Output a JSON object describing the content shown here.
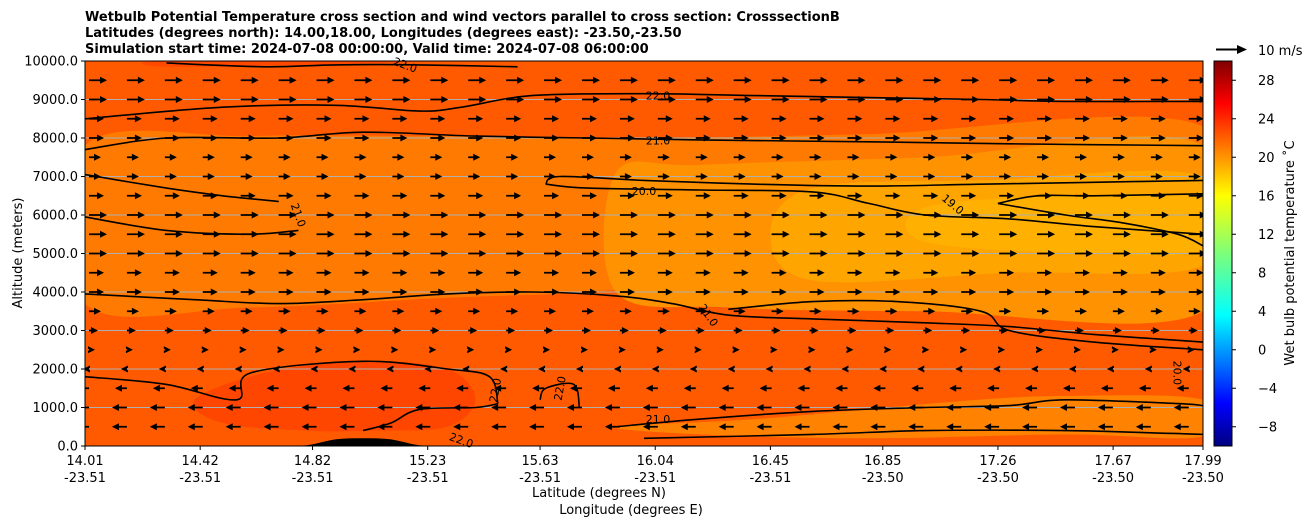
{
  "chart_data": {
    "type": "heatmap",
    "title_lines": [
      "Wetbulb Potential Temperature cross section and wind vectors parallel to cross section: CrosssectionB",
      "Latitudes (degrees north): 14.00,18.00, Longitudes (degrees east): -23.50,-23.50",
      "Simulation start time: 2024-07-08 00:00:00, Valid time: 2024-07-08 06:00:00"
    ],
    "xlabel": "Latitude (degrees N)",
    "xlabel2": "Longitude (degrees E)",
    "ylabel": "Altitude (meters)",
    "ylim": [
      0,
      10000
    ],
    "xlim": [
      14.01,
      17.99
    ],
    "y_ticks": [
      {
        "value": 0,
        "label": "0.0"
      },
      {
        "value": 1000,
        "label": "1000.0"
      },
      {
        "value": 2000,
        "label": "2000.0"
      },
      {
        "value": 3000,
        "label": "3000.0"
      },
      {
        "value": 4000,
        "label": "4000.0"
      },
      {
        "value": 5000,
        "label": "5000.0"
      },
      {
        "value": 6000,
        "label": "6000.0"
      },
      {
        "value": 7000,
        "label": "7000.0"
      },
      {
        "value": 8000,
        "label": "8000.0"
      },
      {
        "value": 9000,
        "label": "9000.0"
      },
      {
        "value": 10000,
        "label": "10000.0"
      }
    ],
    "x_ticks": [
      {
        "lat": 14.01,
        "lat_label": "14.01",
        "lon_label": "-23.51"
      },
      {
        "lat": 14.42,
        "lat_label": "14.42",
        "lon_label": "-23.51"
      },
      {
        "lat": 14.82,
        "lat_label": "14.82",
        "lon_label": "-23.51"
      },
      {
        "lat": 15.23,
        "lat_label": "15.23",
        "lon_label": "-23.51"
      },
      {
        "lat": 15.63,
        "lat_label": "15.63",
        "lon_label": "-23.51"
      },
      {
        "lat": 16.04,
        "lat_label": "16.04",
        "lon_label": "-23.51"
      },
      {
        "lat": 16.45,
        "lat_label": "16.45",
        "lon_label": "-23.51"
      },
      {
        "lat": 16.85,
        "lat_label": "16.85",
        "lon_label": "-23.50"
      },
      {
        "lat": 17.26,
        "lat_label": "17.26",
        "lon_label": "-23.50"
      },
      {
        "lat": 17.67,
        "lat_label": "17.67",
        "lon_label": "-23.50"
      },
      {
        "lat": 17.99,
        "lat_label": "17.99",
        "lon_label": "-23.50"
      }
    ],
    "colorbar": {
      "label": "Wet bulb potential temperature ˚C",
      "min": -10,
      "max": 30,
      "ticks": [
        -8,
        -4,
        0,
        4,
        8,
        12,
        16,
        20,
        24,
        28
      ],
      "tick_labels": [
        "−8",
        "−4",
        "0",
        "4",
        "8",
        "12",
        "16",
        "20",
        "24",
        "28"
      ]
    },
    "quiver_key": {
      "label": "10 m/s",
      "speed": 10
    },
    "filled_regions": [
      {
        "name": "background-23",
        "value": 23,
        "color": "#ff5a00",
        "points": [
          [
            14.01,
            0
          ],
          [
            17.99,
            0
          ],
          [
            17.99,
            10000
          ],
          [
            14.01,
            10000
          ]
        ]
      },
      {
        "name": "layer-22",
        "value": 22,
        "color": "#ff7a00",
        "points": [
          [
            14.01,
            3700
          ],
          [
            14.6,
            3600
          ],
          [
            15.3,
            3850
          ],
          [
            15.7,
            3950
          ],
          [
            16.2,
            4100
          ],
          [
            17.99,
            4150
          ],
          [
            17.99,
            8300
          ],
          [
            16.8,
            8100
          ],
          [
            16.0,
            8000
          ],
          [
            15.2,
            8050
          ],
          [
            14.6,
            8050
          ],
          [
            14.01,
            7800
          ]
        ]
      },
      {
        "name": "layer-21",
        "value": 21,
        "color": "#ff9200",
        "points": [
          [
            15.9,
            4000
          ],
          [
            16.3,
            3600
          ],
          [
            17.0,
            3500
          ],
          [
            17.99,
            3500
          ],
          [
            17.99,
            7800
          ],
          [
            17.0,
            7500
          ],
          [
            16.2,
            7300
          ],
          [
            15.9,
            7100
          ]
        ]
      },
      {
        "name": "layer-20",
        "value": 20,
        "color": "#ffa500",
        "points": [
          [
            16.6,
            4300
          ],
          [
            17.3,
            4500
          ],
          [
            17.99,
            4700
          ],
          [
            17.99,
            7000
          ],
          [
            17.2,
            6900
          ],
          [
            16.6,
            6700
          ],
          [
            16.45,
            5500
          ]
        ]
      },
      {
        "name": "layer-19",
        "value": 19,
        "color": "#ffb000",
        "points": [
          [
            17.0,
            5300
          ],
          [
            17.6,
            5000
          ],
          [
            17.99,
            5100
          ],
          [
            17.99,
            6400
          ],
          [
            17.5,
            6500
          ],
          [
            17.0,
            6200
          ]
        ]
      },
      {
        "name": "low-21",
        "value": 21,
        "color": "#ff8200",
        "points": [
          [
            15.9,
            500
          ],
          [
            16.4,
            700
          ],
          [
            17.1,
            1150
          ],
          [
            17.5,
            1300
          ],
          [
            17.99,
            1200
          ],
          [
            17.99,
            250
          ],
          [
            17.5,
            300
          ],
          [
            16.8,
            200
          ],
          [
            16.2,
            300
          ]
        ]
      },
      {
        "name": "low-24",
        "value": 24,
        "color": "#ff4600",
        "points": [
          [
            14.4,
            1200
          ],
          [
            14.65,
            1900
          ],
          [
            15.0,
            2200
          ],
          [
            15.3,
            2000
          ],
          [
            15.4,
            1200
          ],
          [
            15.3,
            500
          ],
          [
            15.05,
            400
          ],
          [
            14.8,
            400
          ],
          [
            14.5,
            600
          ]
        ]
      },
      {
        "name": "upper-24",
        "value": 24,
        "color": "#ff4800",
        "points": [
          [
            14.3,
            9850
          ],
          [
            14.8,
            9900
          ],
          [
            15.2,
            10000
          ],
          [
            14.3,
            10000
          ]
        ]
      }
    ],
    "contours": [
      {
        "level": 22.0,
        "points": [
          [
            14.01,
            8500
          ],
          [
            14.5,
            8800
          ],
          [
            14.9,
            8850
          ],
          [
            15.2,
            8700
          ],
          [
            15.35,
            8800
          ],
          [
            15.6,
            9100
          ],
          [
            16.0,
            9150
          ],
          [
            16.4,
            9100
          ],
          [
            16.8,
            9050
          ],
          [
            17.2,
            9000
          ],
          [
            17.5,
            8950
          ],
          [
            17.99,
            8950
          ]
        ]
      },
      {
        "level": 22.0,
        "points": [
          [
            15.55,
            9850
          ],
          [
            15.2,
            9900
          ],
          [
            14.9,
            9900
          ],
          [
            14.65,
            9850
          ],
          [
            14.3,
            9950
          ]
        ]
      },
      {
        "level": 21.0,
        "points": [
          [
            14.01,
            7700
          ],
          [
            14.3,
            8000
          ],
          [
            14.7,
            8000
          ],
          [
            15.0,
            8150
          ],
          [
            15.4,
            8050
          ],
          [
            15.8,
            8000
          ],
          [
            16.2,
            7950
          ],
          [
            16.8,
            7900
          ],
          [
            17.3,
            7850
          ],
          [
            17.99,
            7800
          ]
        ]
      },
      {
        "level": 21.0,
        "points": [
          [
            14.01,
            7050
          ],
          [
            14.3,
            6700
          ],
          [
            14.5,
            6500
          ],
          [
            14.7,
            6350
          ]
        ]
      },
      {
        "level": 21.0,
        "points": [
          [
            14.01,
            5950
          ],
          [
            14.3,
            5600
          ],
          [
            14.6,
            5500
          ],
          [
            14.77,
            5600
          ]
        ]
      },
      {
        "level": 20.0,
        "points": [
          [
            15.65,
            6800
          ],
          [
            15.7,
            7000
          ],
          [
            16.0,
            6900
          ],
          [
            16.4,
            6800
          ],
          [
            16.8,
            6750
          ],
          [
            17.2,
            6800
          ],
          [
            17.6,
            6850
          ],
          [
            17.99,
            6900
          ]
        ]
      },
      {
        "level": 20.0,
        "points": [
          [
            15.65,
            6800
          ],
          [
            15.8,
            6700
          ],
          [
            16.2,
            6650
          ],
          [
            16.6,
            6600
          ],
          [
            16.8,
            6300
          ],
          [
            17.0,
            6000
          ],
          [
            17.3,
            5900
          ],
          [
            17.6,
            5700
          ],
          [
            17.99,
            5500
          ]
        ]
      },
      {
        "level": 19.0,
        "points": [
          [
            17.26,
            6300
          ],
          [
            17.4,
            6500
          ],
          [
            17.6,
            6500
          ],
          [
            17.99,
            6550
          ]
        ]
      },
      {
        "level": 19.0,
        "points": [
          [
            17.26,
            6300
          ],
          [
            17.5,
            6000
          ],
          [
            17.7,
            5800
          ],
          [
            17.9,
            5500
          ],
          [
            17.99,
            5200
          ]
        ]
      },
      {
        "level": 21.0,
        "points": [
          [
            14.01,
            3950
          ],
          [
            14.4,
            3800
          ],
          [
            14.7,
            3700
          ],
          [
            15.0,
            3800
          ],
          [
            15.3,
            3950
          ],
          [
            15.6,
            4000
          ],
          [
            15.9,
            3900
          ],
          [
            16.1,
            3700
          ],
          [
            16.3,
            3400
          ],
          [
            16.6,
            3300
          ],
          [
            17.0,
            3200
          ],
          [
            17.3,
            3100
          ],
          [
            17.6,
            2900
          ],
          [
            17.99,
            2700
          ]
        ]
      },
      {
        "level": 20.0,
        "points": [
          [
            16.3,
            3550
          ],
          [
            16.6,
            3750
          ],
          [
            16.9,
            3750
          ],
          [
            17.2,
            3500
          ],
          [
            17.3,
            3000
          ],
          [
            17.6,
            2700
          ],
          [
            17.99,
            2500
          ]
        ]
      },
      {
        "level": 22.0,
        "points": [
          [
            14.01,
            1800
          ],
          [
            14.3,
            1600
          ],
          [
            14.55,
            1200
          ],
          [
            14.6,
            1900
          ],
          [
            15.0,
            2200
          ],
          [
            15.3,
            2000
          ],
          [
            15.45,
            1800
          ],
          [
            15.48,
            1100
          ]
        ]
      },
      {
        "level": 22.0,
        "points": [
          [
            15.48,
            1100
          ],
          [
            15.4,
            1000
          ],
          [
            15.2,
            950
          ],
          [
            15.1,
            600
          ],
          [
            15.0,
            400
          ]
        ]
      },
      {
        "level": 22.0,
        "points": [
          [
            15.63,
            1200
          ],
          [
            15.65,
            1500
          ],
          [
            15.75,
            1600
          ],
          [
            15.77,
            1000
          ]
        ]
      },
      {
        "level": 21.0,
        "points": [
          [
            15.9,
            500
          ],
          [
            16.2,
            700
          ],
          [
            16.6,
            900
          ],
          [
            17.0,
            1000
          ],
          [
            17.3,
            1050
          ],
          [
            17.5,
            1200
          ],
          [
            17.9,
            1100
          ],
          [
            17.99,
            1050
          ]
        ]
      },
      {
        "level": 21.0,
        "points": [
          [
            16.0,
            200
          ],
          [
            16.6,
            300
          ],
          [
            17.0,
            400
          ],
          [
            17.5,
            400
          ],
          [
            17.99,
            300
          ]
        ]
      }
    ],
    "contour_labels": [
      {
        "text": "22.0",
        "lat": 16.05,
        "alt": 9100,
        "angle": 0
      },
      {
        "text": "21.0",
        "lat": 16.05,
        "alt": 7940,
        "angle": 0
      },
      {
        "text": "20.0",
        "lat": 16.0,
        "alt": 6620,
        "angle": 0
      },
      {
        "text": "19.0",
        "lat": 17.1,
        "alt": 6280,
        "angle": 40
      },
      {
        "text": "21.0",
        "lat": 14.77,
        "alt": 6000,
        "angle": 70
      },
      {
        "text": "21.0",
        "lat": 16.23,
        "alt": 3400,
        "angle": 55
      },
      {
        "text": "20.0",
        "lat": 17.9,
        "alt": 1900,
        "angle": 90
      },
      {
        "text": "22.0",
        "lat": 15.47,
        "alt": 1450,
        "angle": -80
      },
      {
        "text": "22.0",
        "lat": 15.7,
        "alt": 1500,
        "angle": -80
      },
      {
        "text": "21.0",
        "lat": 16.05,
        "alt": 700,
        "angle": 0
      },
      {
        "text": "22.0",
        "lat": 15.35,
        "alt": 150,
        "angle": 20
      },
      {
        "text": "22.0",
        "lat": 15.15,
        "alt": 9900,
        "angle": 20
      }
    ],
    "terrain": {
      "peak_lat": 15.0,
      "width_lat": 0.25,
      "peak_alt": 200
    },
    "wind_rows": [
      {
        "alt": 9500,
        "u": 6
      },
      {
        "alt": 9000,
        "u": 6
      },
      {
        "alt": 8500,
        "u": 5
      },
      {
        "alt": 8000,
        "u": 5
      },
      {
        "alt": 7500,
        "u": 4
      },
      {
        "alt": 7000,
        "u": 4
      },
      {
        "alt": 6500,
        "u": 5
      },
      {
        "alt": 6000,
        "u": 6
      },
      {
        "alt": 5500,
        "u": 6
      },
      {
        "alt": 5000,
        "u": 6
      },
      {
        "alt": 4500,
        "u": 5
      },
      {
        "alt": 4000,
        "u": 5
      },
      {
        "alt": 3500,
        "u": 4
      },
      {
        "alt": 3000,
        "u": 3
      },
      {
        "alt": 2500,
        "u": 2
      },
      {
        "alt": 2000,
        "u": -2
      },
      {
        "alt": 1500,
        "u": -4
      },
      {
        "alt": 1000,
        "u": -5
      },
      {
        "alt": 500,
        "u": -5
      }
    ],
    "wind_lat_step": 0.135
  }
}
